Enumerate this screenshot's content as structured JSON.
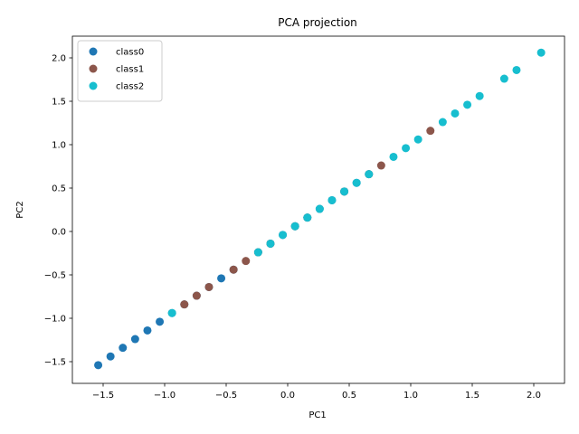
{
  "chart_data": {
    "type": "scatter",
    "title": "PCA projection",
    "xlabel": "PC1",
    "ylabel": "PC2",
    "xlim": [
      -1.75,
      2.25
    ],
    "ylim": [
      -1.75,
      2.25
    ],
    "xticks": [
      -1.5,
      -1.0,
      -0.5,
      0.0,
      0.5,
      1.0,
      1.5,
      2.0
    ],
    "xtick_labels": [
      "−1.5",
      "−1.0",
      "−0.5",
      "0.0",
      "0.5",
      "1.0",
      "1.5",
      "2.0"
    ],
    "yticks": [
      -1.5,
      -1.0,
      -0.5,
      0.0,
      0.5,
      1.0,
      1.5,
      2.0
    ],
    "ytick_labels": [
      "−1.5",
      "−1.0",
      "−0.5",
      "0.0",
      "0.5",
      "1.0",
      "1.5",
      "2.0"
    ],
    "grid": false,
    "legend_position": "top-left",
    "series": [
      {
        "name": "class0",
        "color": "#1f77b4",
        "points": [
          [
            -1.54,
            -1.54
          ],
          [
            -1.44,
            -1.44
          ],
          [
            -1.34,
            -1.34
          ],
          [
            -1.24,
            -1.24
          ],
          [
            -1.14,
            -1.14
          ],
          [
            -1.04,
            -1.04
          ],
          [
            -0.94,
            -0.94
          ],
          [
            -0.84,
            -0.84
          ],
          [
            -0.74,
            -0.74
          ],
          [
            -0.64,
            -0.64
          ],
          [
            -0.54,
            -0.54
          ],
          [
            -0.44,
            -0.44
          ],
          [
            -0.24,
            -0.24
          ],
          [
            -0.14,
            -0.14
          ],
          [
            -0.04,
            -0.04
          ],
          [
            0.06,
            0.06
          ],
          [
            0.16,
            0.16
          ],
          [
            0.26,
            0.26
          ],
          [
            0.36,
            0.36
          ],
          [
            0.46,
            0.46
          ],
          [
            0.56,
            0.56
          ],
          [
            0.66,
            0.66
          ]
        ]
      },
      {
        "name": "class1",
        "color": "#8c564b",
        "points": [
          [
            -0.84,
            -0.84
          ],
          [
            -0.74,
            -0.74
          ],
          [
            -0.64,
            -0.64
          ],
          [
            -0.44,
            -0.44
          ],
          [
            -0.34,
            -0.34
          ],
          [
            -0.24,
            -0.24
          ],
          [
            -0.14,
            -0.14
          ],
          [
            0.06,
            0.06
          ],
          [
            0.16,
            0.16
          ],
          [
            0.46,
            0.46
          ],
          [
            0.66,
            0.66
          ],
          [
            0.76,
            0.76
          ],
          [
            1.16,
            1.16
          ]
        ]
      },
      {
        "name": "class2",
        "color": "#17becf",
        "points": [
          [
            -0.94,
            -0.94
          ],
          [
            -0.24,
            -0.24
          ],
          [
            -0.14,
            -0.14
          ],
          [
            -0.04,
            -0.04
          ],
          [
            0.06,
            0.06
          ],
          [
            0.16,
            0.16
          ],
          [
            0.26,
            0.26
          ],
          [
            0.36,
            0.36
          ],
          [
            0.46,
            0.46
          ],
          [
            0.56,
            0.56
          ],
          [
            0.66,
            0.66
          ],
          [
            0.86,
            0.86
          ],
          [
            0.96,
            0.96
          ],
          [
            1.06,
            1.06
          ],
          [
            1.26,
            1.26
          ],
          [
            1.36,
            1.36
          ],
          [
            1.46,
            1.46
          ],
          [
            1.56,
            1.56
          ],
          [
            1.76,
            1.76
          ],
          [
            1.86,
            1.86
          ],
          [
            2.06,
            2.06
          ]
        ]
      }
    ]
  }
}
